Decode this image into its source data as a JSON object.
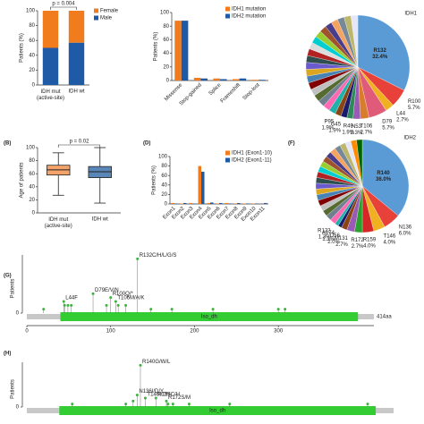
{
  "chart_data": [
    {
      "type": "stacked_bar",
      "ylabel": "Patients (%)",
      "categories": [
        "IDH mut\n(active-site)",
        "IDH wt"
      ],
      "series": [
        {
          "name": "Male",
          "color": "#1f5aa6",
          "values": [
            50,
            57
          ]
        },
        {
          "name": "Female",
          "color": "#f07c1e",
          "values": [
            50,
            43
          ]
        }
      ],
      "ylim": [
        0,
        100
      ],
      "yticks": [
        0,
        20,
        40,
        60,
        80,
        100
      ],
      "annotation": "p = 0.004"
    },
    {
      "type": "bar",
      "ylabel": "Patients (%)",
      "categories": [
        "Missense",
        "Stop-gained",
        "Splice",
        "Frameshift",
        "Stop-lost"
      ],
      "series": [
        {
          "name": "IDH1 mutation",
          "color": "#f07c1e",
          "values": [
            88,
            4,
            3,
            2,
            1
          ]
        },
        {
          "name": "IDH2 mutation",
          "color": "#1f5aa6",
          "values": [
            88,
            3,
            2,
            3,
            1
          ]
        }
      ],
      "ylim": [
        0,
        100
      ],
      "yticks": [
        0,
        20,
        40,
        60,
        80,
        100
      ]
    },
    {
      "type": "pie",
      "title": "IDH1",
      "categories": [
        "R132",
        "R100",
        "L44",
        "D79",
        "T106",
        "N53",
        "R49",
        "G45",
        "P95",
        null,
        null,
        null,
        null,
        null,
        null,
        null,
        null,
        null,
        null,
        null,
        null,
        null,
        null,
        null,
        null,
        null,
        null,
        null,
        null
      ],
      "values": [
        32.4,
        5.7,
        2.7,
        5.7,
        2.7,
        2.3,
        1.9,
        1.9,
        1.9,
        2.14,
        2.14,
        2.14,
        2.14,
        2.14,
        2.14,
        2.14,
        2.14,
        2.14,
        2.14,
        2.14,
        2.14,
        2.14,
        2.14,
        2.14,
        2.14,
        2.14,
        2.14,
        2.14,
        2.14
      ],
      "value_labels": [
        "32.4%",
        "5.7%",
        "2.7%",
        "5.7%",
        "2.7%",
        "2.3%",
        "1.9%",
        "1.9%",
        "1.9%",
        null,
        null,
        null,
        null,
        null,
        null,
        null,
        null,
        null,
        null,
        null,
        null,
        null,
        null,
        null,
        null,
        null,
        null,
        null,
        null
      ],
      "colors": [
        "#5b9bd5",
        "#e8413a",
        "#f0b020",
        "#e05a7a",
        "#d97c2b",
        "#9b59b6",
        "#2e8b57",
        "#1a1a6e",
        "#8b4513",
        "#20b2aa",
        "#ff69b4",
        "#708090",
        "#556b2f",
        "#c0c0c0",
        "#800000",
        "#4682b4",
        "#daa520",
        "#6a5acd",
        "#2f4f4f",
        "#b22222",
        "#dcdcdc",
        "#00ced1",
        "#9acd32",
        "#a0522d",
        "#483d8b",
        "#f4a460",
        "#778899",
        "#bdb76b",
        "#e6e6fa"
      ]
    },
    {
      "type": "box",
      "panel_label": "(B)",
      "ylabel": "Age of patients",
      "categories": [
        "IDH mut\n(active-site)",
        "IDH wt"
      ],
      "boxes": [
        {
          "color": "#f4a46a",
          "min": 27,
          "q1": 58,
          "median": 66,
          "q3": 73,
          "max": 92
        },
        {
          "color": "#5b86b8",
          "min": 15,
          "q1": 54,
          "median": 63,
          "q3": 71,
          "max": 100
        }
      ],
      "ylim": [
        0,
        100
      ],
      "yticks": [
        0,
        20,
        40,
        60,
        80,
        100
      ],
      "annotation": "p = 0.02"
    },
    {
      "type": "bar",
      "panel_label": "(D)",
      "ylabel": "Patients (%)",
      "categories": [
        "Exon1",
        "Exon2",
        "Exon3",
        "Exon4",
        "Exon5",
        "Exon6",
        "Exon7",
        "Exon8",
        "Exon9",
        "Exon10",
        "Exon11"
      ],
      "series": [
        {
          "name": "IDH1 (Exon1-10)",
          "color": "#f07c1e",
          "values": [
            2,
            1,
            2,
            80,
            2,
            1,
            2,
            1,
            1,
            1,
            null
          ]
        },
        {
          "name": "IDH2 (Exon1-11)",
          "color": "#1f5aa6",
          "values": [
            1,
            2,
            1,
            68,
            3,
            2,
            1,
            2,
            1,
            1,
            2
          ]
        }
      ],
      "ylim": [
        0,
        100
      ],
      "yticks": [
        0,
        20,
        40,
        60,
        80,
        100
      ]
    },
    {
      "type": "pie",
      "panel_label": "(F)",
      "title": "IDH2",
      "categories": [
        "R140",
        "N136",
        "T146",
        "R159",
        "R172",
        "M131",
        "D56",
        "A174",
        "R122",
        null,
        null,
        null,
        null,
        null,
        null,
        null,
        null,
        null,
        null,
        null,
        null,
        null,
        null,
        null,
        null,
        null,
        null,
        null,
        null
      ],
      "values": [
        36.0,
        6.0,
        4.0,
        4.0,
        2.7,
        2.7,
        2.0,
        1.3,
        1.3,
        2.0,
        2.0,
        2.0,
        2.0,
        2.0,
        2.0,
        2.0,
        2.0,
        2.0,
        2.0,
        2.0,
        2.0,
        2.0,
        2.0,
        2.0,
        2.0,
        2.0,
        2.0,
        2.0,
        2.0
      ],
      "value_labels": [
        "36.0%",
        "6.0%",
        "4.0%",
        "4.0%",
        "2.7%",
        "2.7%",
        "2.0%",
        "1.3%",
        "1.3%",
        null,
        null,
        null,
        null,
        null,
        null,
        null,
        null,
        null,
        null,
        null,
        null,
        null,
        null,
        null,
        null,
        null,
        null,
        null,
        null
      ],
      "colors": [
        "#5b9bd5",
        "#e8413a",
        "#f0b020",
        "#d62728",
        "#2ca02c",
        "#9b59b6",
        "#8b4513",
        "#1a1a6e",
        "#20b2aa",
        "#ff69b4",
        "#708090",
        "#556b2f",
        "#c0c0c0",
        "#800000",
        "#4682b4",
        "#daa520",
        "#6a5acd",
        "#2f4f4f",
        "#b22222",
        "#00ced1",
        "#9acd32",
        "#a0522d",
        "#483d8b",
        "#f4a460",
        "#778899",
        "#bdb76b",
        "#e6e6fa",
        "#ff8c00",
        "#006400"
      ]
    },
    {
      "type": "lollipop",
      "panel_label": "(G)",
      "ylabel": "Patients",
      "color": "#3cb33c",
      "x": [
        20,
        44,
        45,
        49,
        53,
        79,
        95,
        100,
        106,
        109,
        118,
        132,
        148,
        173,
        222,
        300,
        308
      ],
      "values": [
        1,
        3,
        2,
        2,
        2,
        5,
        2,
        4,
        3,
        2,
        2,
        14,
        1,
        1,
        1,
        1,
        1
      ],
      "labels": [
        null,
        "L44F",
        null,
        null,
        null,
        "D79E/V/N",
        null,
        "R100Q/*",
        "T106M/A/K",
        null,
        null,
        "R132C/H/L/G/S",
        null,
        null,
        null,
        null,
        null
      ],
      "xlim": [
        0,
        414
      ],
      "xticks": [
        0,
        100,
        200,
        300
      ],
      "ylim": [
        0,
        15
      ],
      "yticks": [
        0
      ],
      "domain": {
        "name": "Iso_dh",
        "start": 40,
        "end": 395
      },
      "length_label": "414aa"
    },
    {
      "type": "lollipop",
      "panel_label": "(H)",
      "ylabel": "Patients",
      "color": "#3cb33c",
      "x": [
        56,
        122,
        131,
        136,
        140,
        146,
        159,
        172,
        174,
        180,
        200,
        250,
        420
      ],
      "values": [
        1,
        1,
        2,
        4,
        14,
        3,
        3,
        2,
        1,
        1,
        1,
        1,
        1
      ],
      "labels": [
        null,
        null,
        null,
        "N136I/D/Y",
        "R140G/W/L",
        "T146I/Dfs",
        "R159C/H",
        "R172S/M",
        null,
        null,
        null,
        null,
        null
      ],
      "xlim": [
        0,
        452
      ],
      "ylim": [
        0,
        15
      ],
      "yticks": [
        0
      ],
      "domain": {
        "name": "Iso_dh",
        "start": 40,
        "end": 430
      }
    }
  ]
}
